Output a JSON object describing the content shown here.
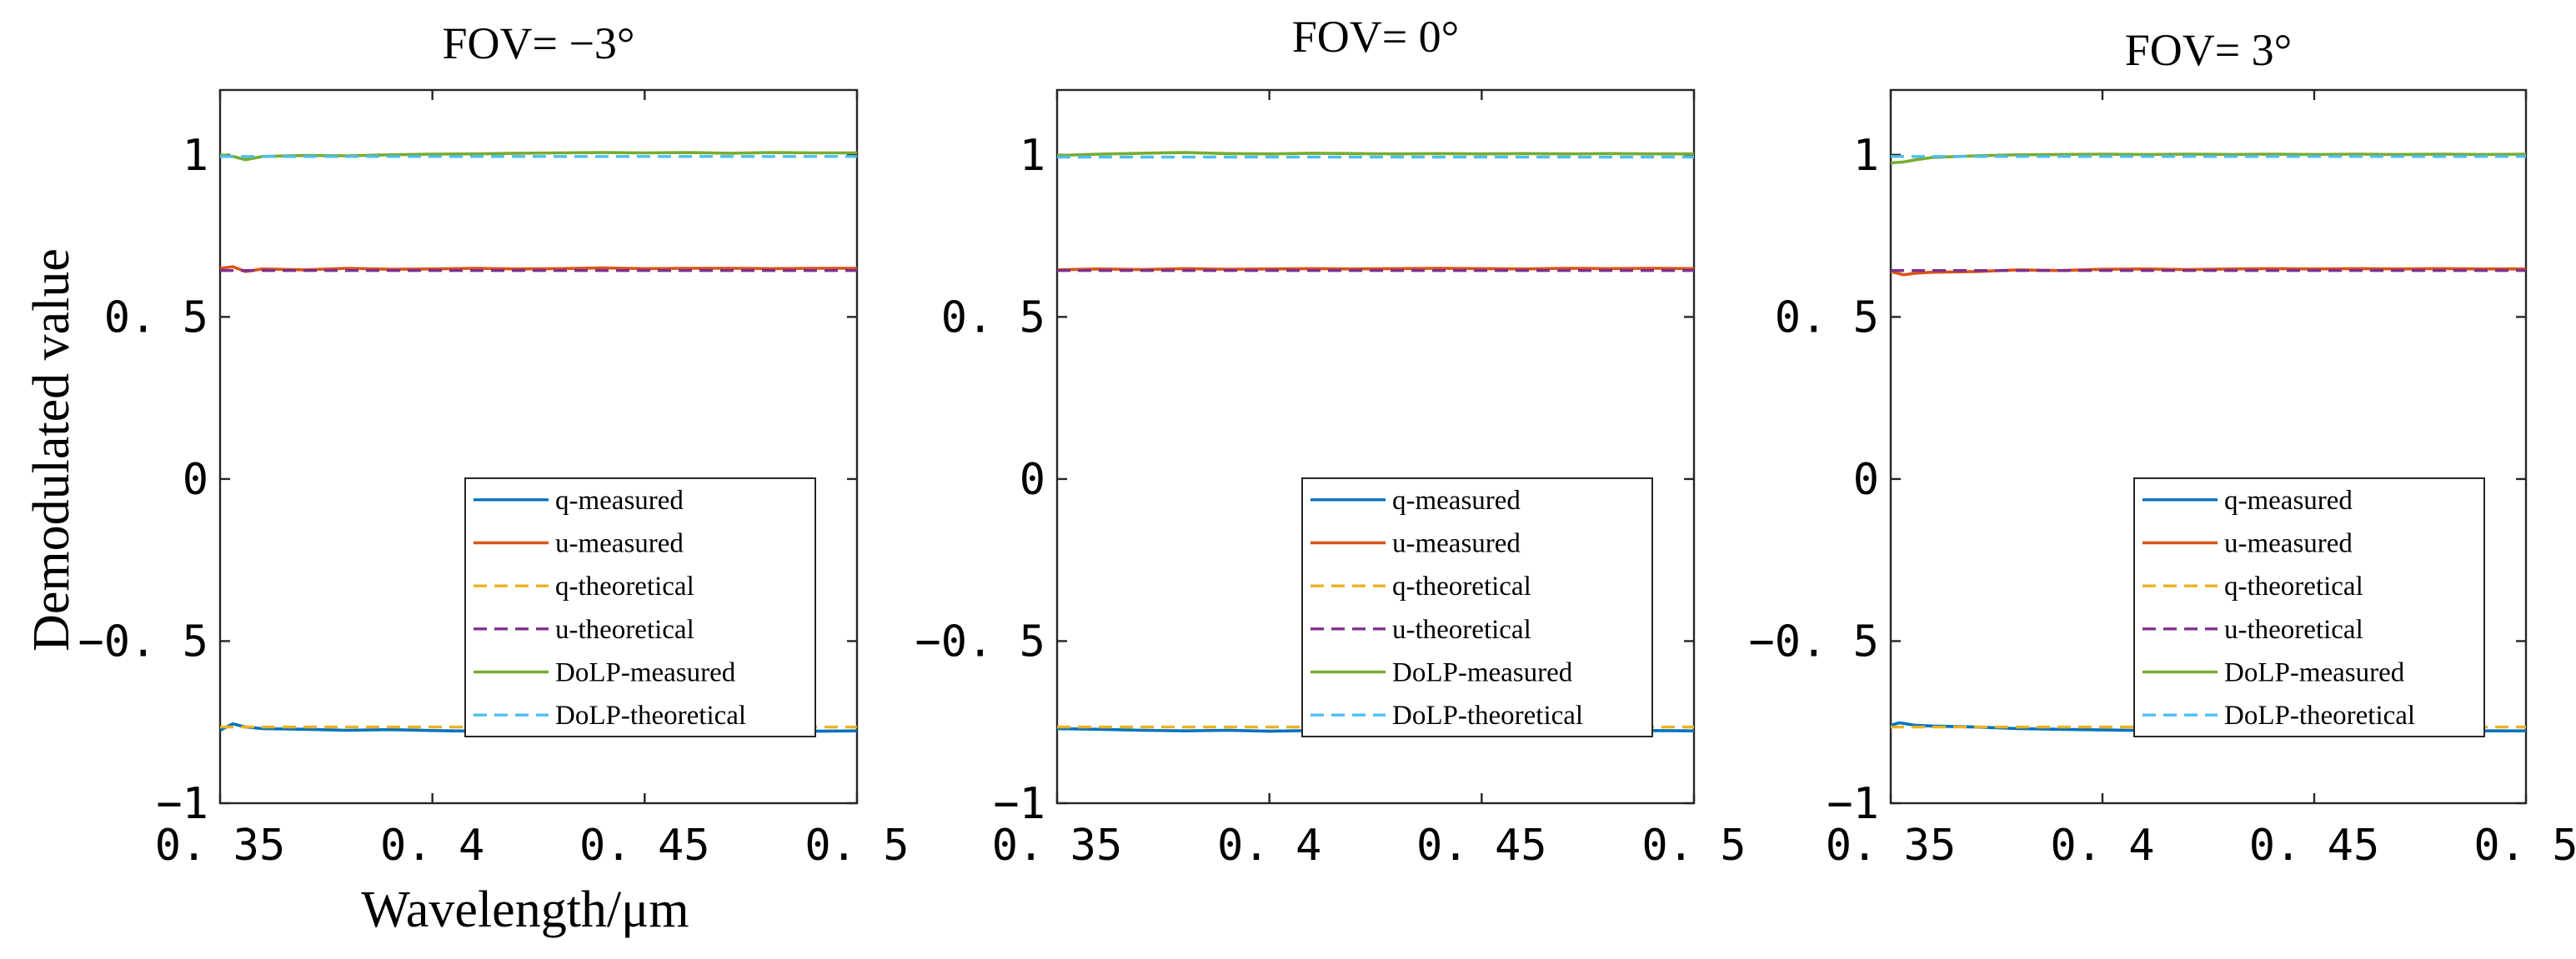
{
  "figure": {
    "ylabel": "Demodulated value",
    "xlabel": "Wavelength/μm"
  },
  "chart_data": [
    {
      "type": "line",
      "title": "FOV= −3°",
      "xlabel": "Wavelength/μm",
      "ylabel": "Demodulated value",
      "xlim": [
        0.35,
        0.5
      ],
      "ylim": [
        -1,
        1.2
      ],
      "xticks": [
        0.35,
        0.4,
        0.45,
        0.5
      ],
      "xtick_labels": [
        "0. 35",
        "0. 4",
        "0. 45",
        "0. 5"
      ],
      "yticks": [
        -1,
        -0.5,
        0,
        0.5,
        1
      ],
      "ytick_labels": [
        "−1",
        "−0. 5",
        "0",
        "0. 5",
        "1"
      ],
      "legend_position": "lower-right",
      "series": [
        {
          "name": "q-measured",
          "color": "#0072BD",
          "dash": false,
          "x": [
            0.35,
            0.353,
            0.356,
            0.36,
            0.37,
            0.38,
            0.39,
            0.4,
            0.41,
            0.42,
            0.43,
            0.44,
            0.45,
            0.46,
            0.47,
            0.48,
            0.49,
            0.5
          ],
          "y": [
            -0.775,
            -0.755,
            -0.765,
            -0.77,
            -0.772,
            -0.775,
            -0.773,
            -0.776,
            -0.778,
            -0.777,
            -0.775,
            -0.778,
            -0.776,
            -0.775,
            -0.777,
            -0.776,
            -0.778,
            -0.777
          ]
        },
        {
          "name": "u-measured",
          "color": "#D95319",
          "dash": false,
          "x": [
            0.35,
            0.353,
            0.356,
            0.36,
            0.37,
            0.38,
            0.39,
            0.4,
            0.41,
            0.42,
            0.43,
            0.44,
            0.45,
            0.46,
            0.47,
            0.48,
            0.49,
            0.5
          ],
          "y": [
            0.65,
            0.655,
            0.64,
            0.648,
            0.645,
            0.65,
            0.647,
            0.648,
            0.65,
            0.648,
            0.649,
            0.651,
            0.649,
            0.65,
            0.65,
            0.649,
            0.65,
            0.65
          ]
        },
        {
          "name": "q-theoretical",
          "color": "#EDB120",
          "dash": true,
          "x": [
            0.35,
            0.5
          ],
          "y": [
            -0.765,
            -0.765
          ]
        },
        {
          "name": "u-theoretical",
          "color": "#7E2F8E",
          "dash": true,
          "x": [
            0.35,
            0.5
          ],
          "y": [
            0.643,
            0.643
          ]
        },
        {
          "name": "DoLP-measured",
          "color": "#77AC30",
          "dash": false,
          "x": [
            0.35,
            0.353,
            0.356,
            0.36,
            0.37,
            0.38,
            0.39,
            0.4,
            0.41,
            0.42,
            0.43,
            0.44,
            0.45,
            0.46,
            0.47,
            0.48,
            0.49,
            0.5
          ],
          "y": [
            1.0,
            0.995,
            0.985,
            0.995,
            0.998,
            0.997,
            1.0,
            1.002,
            1.003,
            1.005,
            1.006,
            1.007,
            1.006,
            1.007,
            1.005,
            1.007,
            1.006,
            1.006
          ]
        },
        {
          "name": "DoLP-theoretical",
          "color": "#4DBEEE",
          "dash": true,
          "x": [
            0.35,
            0.5
          ],
          "y": [
            0.995,
            0.995
          ]
        }
      ]
    },
    {
      "type": "line",
      "title": "FOV= 0°",
      "xlabel": "",
      "ylabel": "",
      "xlim": [
        0.35,
        0.5
      ],
      "ylim": [
        -1,
        1.2
      ],
      "xticks": [
        0.35,
        0.4,
        0.45,
        0.5
      ],
      "xtick_labels": [
        "0. 35",
        "0. 4",
        "0. 45",
        "0. 5"
      ],
      "yticks": [
        -1,
        -0.5,
        0,
        0.5,
        1
      ],
      "ytick_labels": [
        "−1",
        "−0. 5",
        "0",
        "0. 5",
        "1"
      ],
      "legend_position": "lower-right",
      "series": [
        {
          "name": "q-measured",
          "color": "#0072BD",
          "dash": false,
          "x": [
            0.35,
            0.36,
            0.37,
            0.38,
            0.39,
            0.4,
            0.41,
            0.42,
            0.43,
            0.44,
            0.45,
            0.46,
            0.47,
            0.48,
            0.49,
            0.5
          ],
          "y": [
            -0.77,
            -0.772,
            -0.775,
            -0.777,
            -0.775,
            -0.778,
            -0.776,
            -0.778,
            -0.777,
            -0.776,
            -0.778,
            -0.776,
            -0.777,
            -0.778,
            -0.776,
            -0.777
          ]
        },
        {
          "name": "u-measured",
          "color": "#D95319",
          "dash": false,
          "x": [
            0.35,
            0.36,
            0.37,
            0.38,
            0.39,
            0.4,
            0.41,
            0.42,
            0.43,
            0.44,
            0.45,
            0.46,
            0.47,
            0.48,
            0.49,
            0.5
          ],
          "y": [
            0.645,
            0.648,
            0.646,
            0.649,
            0.647,
            0.648,
            0.649,
            0.648,
            0.649,
            0.65,
            0.649,
            0.648,
            0.65,
            0.649,
            0.65,
            0.649
          ]
        },
        {
          "name": "q-theoretical",
          "color": "#EDB120",
          "dash": true,
          "x": [
            0.35,
            0.5
          ],
          "y": [
            -0.765,
            -0.765
          ]
        },
        {
          "name": "u-theoretical",
          "color": "#7E2F8E",
          "dash": true,
          "x": [
            0.35,
            0.5
          ],
          "y": [
            0.643,
            0.643
          ]
        },
        {
          "name": "DoLP-measured",
          "color": "#77AC30",
          "dash": false,
          "x": [
            0.35,
            0.36,
            0.37,
            0.38,
            0.39,
            0.4,
            0.41,
            0.42,
            0.43,
            0.44,
            0.45,
            0.46,
            0.47,
            0.48,
            0.49,
            0.5
          ],
          "y": [
            0.998,
            1.002,
            1.005,
            1.007,
            1.004,
            1.003,
            1.005,
            1.004,
            1.003,
            1.004,
            1.003,
            1.004,
            1.003,
            1.004,
            1.003,
            1.003
          ]
        },
        {
          "name": "DoLP-theoretical",
          "color": "#4DBEEE",
          "dash": true,
          "x": [
            0.35,
            0.5
          ],
          "y": [
            0.993,
            0.993
          ]
        }
      ]
    },
    {
      "type": "line",
      "title": "FOV= 3°",
      "xlabel": "",
      "ylabel": "",
      "xlim": [
        0.35,
        0.5
      ],
      "ylim": [
        -1,
        1.2
      ],
      "xticks": [
        0.35,
        0.4,
        0.45,
        0.5
      ],
      "xtick_labels": [
        "0. 35",
        "0. 4",
        "0. 45",
        "0. 5"
      ],
      "yticks": [
        -1,
        -0.5,
        0,
        0.5,
        1
      ],
      "ytick_labels": [
        "−1",
        "−0. 5",
        "0",
        "0. 5",
        "1"
      ],
      "legend_position": "lower-right",
      "series": [
        {
          "name": "q-measured",
          "color": "#0072BD",
          "dash": false,
          "x": [
            0.35,
            0.352,
            0.356,
            0.36,
            0.37,
            0.38,
            0.39,
            0.4,
            0.41,
            0.42,
            0.43,
            0.44,
            0.45,
            0.46,
            0.47,
            0.48,
            0.49,
            0.5
          ],
          "y": [
            -0.76,
            -0.752,
            -0.76,
            -0.762,
            -0.765,
            -0.77,
            -0.772,
            -0.774,
            -0.776,
            -0.775,
            -0.777,
            -0.776,
            -0.777,
            -0.776,
            -0.777,
            -0.778,
            -0.777,
            -0.777
          ]
        },
        {
          "name": "u-measured",
          "color": "#D95319",
          "dash": false,
          "x": [
            0.35,
            0.353,
            0.356,
            0.36,
            0.37,
            0.38,
            0.39,
            0.4,
            0.41,
            0.42,
            0.43,
            0.44,
            0.45,
            0.46,
            0.47,
            0.48,
            0.49,
            0.5
          ],
          "y": [
            0.64,
            0.63,
            0.635,
            0.638,
            0.64,
            0.645,
            0.643,
            0.647,
            0.648,
            0.646,
            0.648,
            0.649,
            0.648,
            0.649,
            0.648,
            0.649,
            0.648,
            0.648
          ]
        },
        {
          "name": "q-theoretical",
          "color": "#EDB120",
          "dash": true,
          "x": [
            0.35,
            0.5
          ],
          "y": [
            -0.765,
            -0.765
          ]
        },
        {
          "name": "u-theoretical",
          "color": "#7E2F8E",
          "dash": true,
          "x": [
            0.35,
            0.5
          ],
          "y": [
            0.643,
            0.643
          ]
        },
        {
          "name": "DoLP-measured",
          "color": "#77AC30",
          "dash": false,
          "x": [
            0.35,
            0.353,
            0.356,
            0.36,
            0.37,
            0.38,
            0.39,
            0.4,
            0.41,
            0.42,
            0.43,
            0.44,
            0.45,
            0.46,
            0.47,
            0.48,
            0.49,
            0.5
          ],
          "y": [
            0.975,
            0.978,
            0.985,
            0.992,
            0.997,
            1.0,
            1.001,
            1.002,
            1.001,
            1.002,
            1.001,
            1.002,
            1.001,
            1.002,
            1.001,
            1.002,
            1.001,
            1.002
          ]
        },
        {
          "name": "DoLP-theoretical",
          "color": "#4DBEEE",
          "dash": true,
          "x": [
            0.35,
            0.5
          ],
          "y": [
            0.995,
            0.995
          ]
        }
      ]
    }
  ]
}
